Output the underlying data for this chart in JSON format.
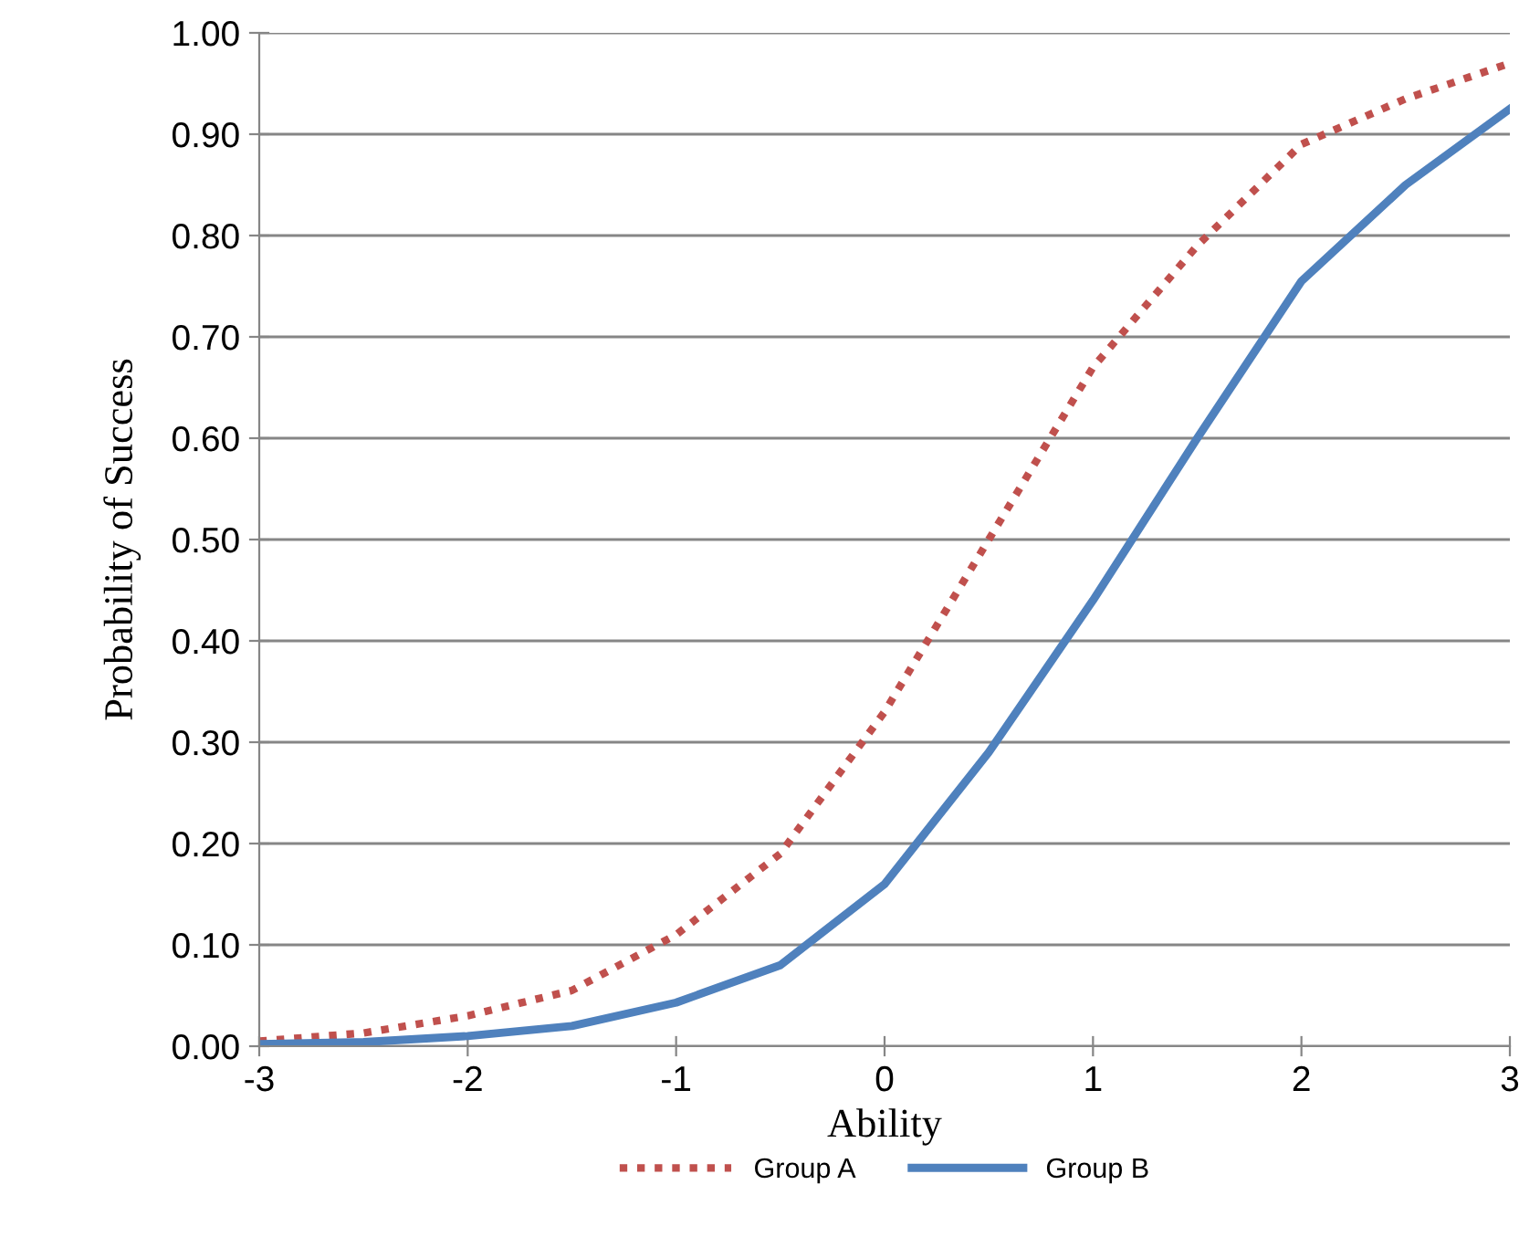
{
  "chart_data": {
    "type": "line",
    "xlabel": "Ability",
    "ylabel": "Probability of Success",
    "x": [
      -3,
      -2.5,
      -2,
      -1.5,
      -1,
      -0.5,
      0,
      0.5,
      1,
      1.5,
      2,
      2.5,
      3
    ],
    "series": [
      {
        "name": "Group A",
        "color": "#c0504d",
        "line_style": "dotted",
        "values": [
          0.005,
          0.013,
          0.03,
          0.055,
          0.11,
          0.19,
          0.33,
          0.5,
          0.67,
          0.79,
          0.89,
          0.935,
          0.97
        ]
      },
      {
        "name": "Group B",
        "color": "#4f81bd",
        "line_style": "solid",
        "values": [
          0.002,
          0.004,
          0.01,
          0.02,
          0.043,
          0.08,
          0.16,
          0.29,
          0.44,
          0.6,
          0.755,
          0.85,
          0.925
        ]
      }
    ],
    "xlim": [
      -3,
      3
    ],
    "xticks": [
      -3,
      -2,
      -1,
      0,
      1,
      2,
      3
    ],
    "ylim": [
      0,
      1
    ],
    "yticks": [
      {
        "value": 0,
        "label": "0.00"
      },
      {
        "value": 0.1,
        "label": "0.10"
      },
      {
        "value": 0.2,
        "label": "0.20"
      },
      {
        "value": 0.3,
        "label": "0.30"
      },
      {
        "value": 0.4,
        "label": "0.40"
      },
      {
        "value": 0.5,
        "label": "0.50"
      },
      {
        "value": 0.6,
        "label": "0.60"
      },
      {
        "value": 0.7,
        "label": "0.70"
      },
      {
        "value": 0.8,
        "label": "0.80"
      },
      {
        "value": 0.9,
        "label": "0.90"
      },
      {
        "value": 1,
        "label": "1.00"
      }
    ],
    "grid": "y",
    "legend": "bottom"
  }
}
